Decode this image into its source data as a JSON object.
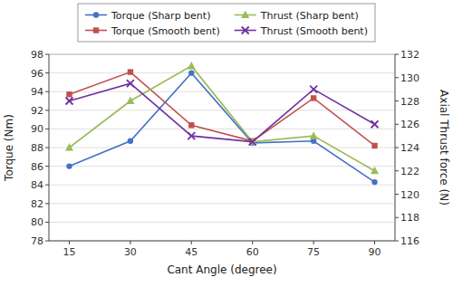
{
  "chart_data": {
    "type": "line",
    "x": [
      15,
      30,
      45,
      60,
      75,
      90
    ],
    "xlabel": "Cant Angle (degree)",
    "ylabel": "Torque (Nm)",
    "y2label": "Axial Thrust force (N)",
    "xlim": [
      10,
      95
    ],
    "xticks": [
      15,
      30,
      45,
      60,
      75,
      90
    ],
    "ylim": [
      78,
      98
    ],
    "yticks": [
      78,
      80,
      82,
      84,
      86,
      88,
      90,
      92,
      94,
      96,
      98
    ],
    "y2lim": [
      116,
      132
    ],
    "y2ticks": [
      116,
      118,
      120,
      122,
      124,
      126,
      128,
      130,
      132
    ],
    "grid": true,
    "legend": "top",
    "series": [
      {
        "name": "Torque (Sharp bent)",
        "color": "#4472C4",
        "marker": "circle",
        "axis": "y",
        "values": [
          86.0,
          88.7,
          96.0,
          88.5,
          88.7,
          84.3
        ]
      },
      {
        "name": "Torque (Smooth bent)",
        "color": "#C0504D",
        "marker": "square",
        "axis": "y",
        "values": [
          93.7,
          96.1,
          90.4,
          88.7,
          93.3,
          88.2
        ]
      },
      {
        "name": "Thrust (Sharp bent)",
        "color": "#9BBB59",
        "marker": "triangle",
        "axis": "y2",
        "values": [
          124.0,
          128.0,
          131.0,
          124.5,
          125.0,
          122.0
        ]
      },
      {
        "name": "Thrust (Smooth bent)",
        "color": "#7030A0",
        "marker": "x",
        "axis": "y2",
        "values": [
          128.0,
          129.5,
          125.0,
          124.5,
          129.0,
          126.0
        ]
      }
    ]
  }
}
